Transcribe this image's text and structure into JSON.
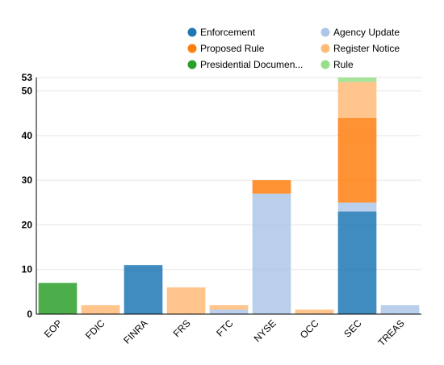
{
  "chart_data": {
    "type": "bar",
    "stacked": true,
    "title": "",
    "xlabel": "",
    "ylabel": "",
    "categories": [
      "EOP",
      "FDIC",
      "FINRA",
      "FRS",
      "FTC",
      "NYSE",
      "OCC",
      "SEC",
      "TREAS"
    ],
    "ylim": [
      0,
      53
    ],
    "yticks": [
      0,
      10,
      20,
      30,
      40,
      50,
      53
    ],
    "grid": true,
    "legend_position": "top-right",
    "series": [
      {
        "name": "Enforcement",
        "color": "#1f77b4",
        "values": [
          0,
          0,
          11,
          0,
          0,
          0,
          0,
          23,
          0
        ]
      },
      {
        "name": "Agency Update",
        "color": "#aec7e8",
        "values": [
          0,
          0,
          0,
          0,
          1,
          27,
          0,
          2,
          2
        ]
      },
      {
        "name": "Proposed Rule",
        "color": "#ff7f0e",
        "values": [
          0,
          0,
          0,
          0,
          0,
          3,
          0,
          19,
          0
        ]
      },
      {
        "name": "Register Notice",
        "color": "#ffbb78",
        "values": [
          0,
          2,
          0,
          6,
          1,
          0,
          1,
          8,
          0
        ]
      },
      {
        "name": "Presidential Documen...",
        "color": "#2ca02c",
        "values": [
          7,
          0,
          0,
          0,
          0,
          0,
          0,
          0,
          0
        ]
      },
      {
        "name": "Rule",
        "color": "#98df8a",
        "values": [
          0,
          0,
          0,
          0,
          0,
          0,
          0,
          1,
          0
        ]
      }
    ]
  }
}
